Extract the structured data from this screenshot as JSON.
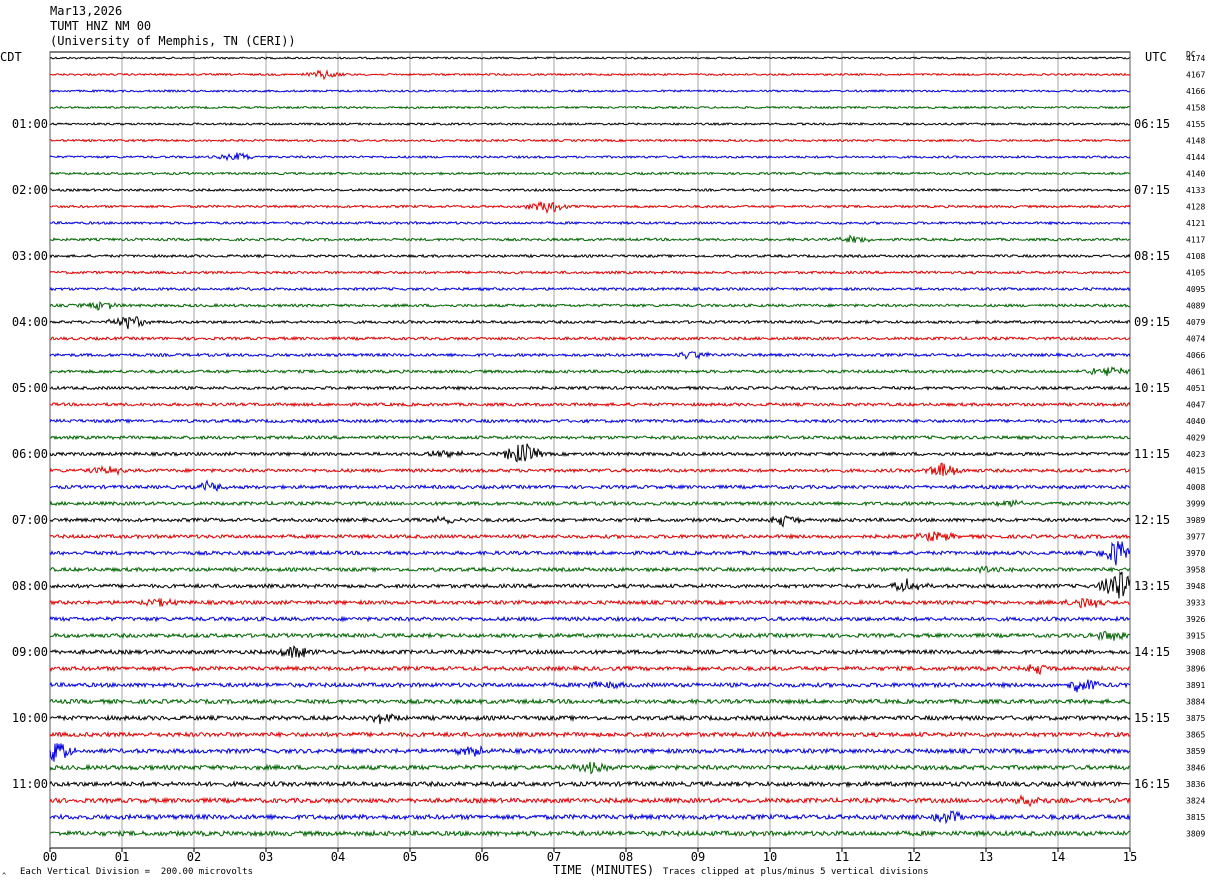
{
  "header": {
    "date": "Mar13,2026",
    "station": "TUMT HNZ NM 00",
    "institution": "(University of Memphis, TN (CERI))"
  },
  "left_zone": "CDT",
  "right_zone": "UTC",
  "dc_label": "DC",
  "footer": {
    "xlabel": "TIME (MINUTES)",
    "scale_note": "Each Vertical Division =  200.00 microvolts",
    "clip_note": "Traces clipped at plus/minus 5 vertical divisions",
    "corner_mark": "^"
  },
  "colors": {
    "black": "#000000",
    "red": "#e00000",
    "blue": "#0000e0",
    "green": "#006400",
    "grid": "#808080"
  },
  "chart_data": {
    "type": "line",
    "title": "TUMT HNZ NM 00",
    "xlabel": "TIME (MINUTES)",
    "xlim": [
      0,
      15
    ],
    "x_ticks": [
      "00",
      "01",
      "02",
      "03",
      "04",
      "05",
      "06",
      "07",
      "08",
      "09",
      "10",
      "11",
      "12",
      "13",
      "14",
      "15"
    ],
    "trace_colors": [
      "black",
      "red",
      "blue",
      "green"
    ],
    "left_time_labels": [
      "01:00",
      "02:00",
      "03:00",
      "04:00",
      "05:00",
      "06:00",
      "07:00",
      "08:00",
      "09:00",
      "10:00",
      "11:00"
    ],
    "right_time_labels": [
      "06:15",
      "07:15",
      "08:15",
      "09:15",
      "10:15",
      "11:15",
      "12:15",
      "13:15",
      "14:15",
      "15:15",
      "16:15"
    ],
    "dc_offsets": [
      4174,
      4167,
      4166,
      4158,
      4155,
      4148,
      4144,
      4140,
      4133,
      4128,
      4121,
      4117,
      4108,
      4105,
      4095,
      4089,
      4079,
      4074,
      4066,
      4061,
      4051,
      4047,
      4040,
      4029,
      4023,
      4015,
      4008,
      3999,
      3989,
      3977,
      3970,
      3958,
      3948,
      3933,
      3926,
      3915,
      3908,
      3896,
      3891,
      3884,
      3875,
      3865,
      3859,
      3846,
      3836,
      3824,
      3815,
      3809
    ],
    "events": [
      {
        "trace": 1,
        "minute": 3.8,
        "amp": 1.2
      },
      {
        "trace": 6,
        "minute": 2.6,
        "amp": 1.0
      },
      {
        "trace": 9,
        "minute": 6.9,
        "amp": 1.8
      },
      {
        "trace": 11,
        "minute": 11.2,
        "amp": 1.0
      },
      {
        "trace": 15,
        "minute": 0.7,
        "amp": 1.2
      },
      {
        "trace": 16,
        "minute": 1.1,
        "amp": 1.8
      },
      {
        "trace": 18,
        "minute": 8.9,
        "amp": 1.0
      },
      {
        "trace": 19,
        "minute": 14.7,
        "amp": 1.3
      },
      {
        "trace": 24,
        "minute": 6.55,
        "amp": 3.0
      },
      {
        "trace": 24,
        "minute": 5.5,
        "amp": 1.0
      },
      {
        "trace": 25,
        "minute": 12.4,
        "amp": 2.0
      },
      {
        "trace": 25,
        "minute": 0.8,
        "amp": 1.0
      },
      {
        "trace": 26,
        "minute": 2.2,
        "amp": 1.4
      },
      {
        "trace": 27,
        "minute": 13.4,
        "amp": 1.0
      },
      {
        "trace": 28,
        "minute": 10.2,
        "amp": 1.4
      },
      {
        "trace": 28,
        "minute": 5.5,
        "amp": 1.0
      },
      {
        "trace": 29,
        "minute": 12.3,
        "amp": 1.4
      },
      {
        "trace": 30,
        "minute": 14.85,
        "amp": 3.5
      },
      {
        "trace": 31,
        "minute": 13.1,
        "amp": 1.2
      },
      {
        "trace": 32,
        "minute": 14.85,
        "amp": 4.5
      },
      {
        "trace": 32,
        "minute": 11.9,
        "amp": 1.6
      },
      {
        "trace": 33,
        "minute": 14.4,
        "amp": 1.6
      },
      {
        "trace": 33,
        "minute": 1.5,
        "amp": 1.0
      },
      {
        "trace": 35,
        "minute": 14.7,
        "amp": 1.3
      },
      {
        "trace": 36,
        "minute": 3.4,
        "amp": 1.6
      },
      {
        "trace": 37,
        "minute": 13.7,
        "amp": 1.2
      },
      {
        "trace": 38,
        "minute": 14.3,
        "amp": 1.8
      },
      {
        "trace": 38,
        "minute": 7.7,
        "amp": 1.0
      },
      {
        "trace": 40,
        "minute": 4.6,
        "amp": 1.4
      },
      {
        "trace": 42,
        "minute": 0.05,
        "amp": 3.0
      },
      {
        "trace": 42,
        "minute": 5.9,
        "amp": 1.2
      },
      {
        "trace": 43,
        "minute": 7.5,
        "amp": 1.2
      },
      {
        "trace": 45,
        "minute": 13.6,
        "amp": 1.2
      },
      {
        "trace": 46,
        "minute": 12.5,
        "amp": 1.4
      }
    ]
  }
}
